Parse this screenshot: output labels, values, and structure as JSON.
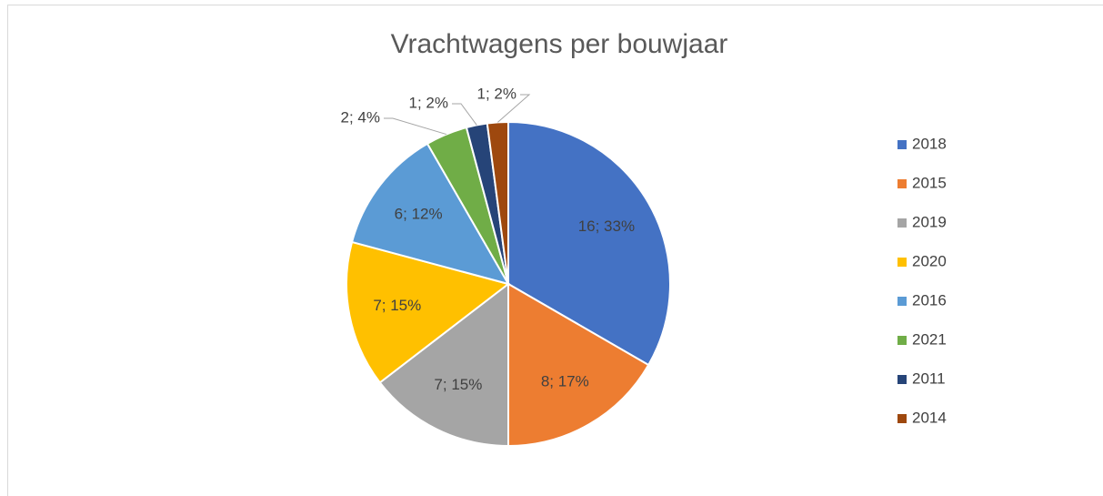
{
  "chart_data": {
    "type": "pie",
    "title": "Vrachtwagens per bouwjaar",
    "categories": [
      "2018",
      "2015",
      "2019",
      "2020",
      "2016",
      "2021",
      "2011",
      "2014"
    ],
    "values": [
      16,
      8,
      7,
      7,
      6,
      2,
      1,
      1
    ],
    "value_labels": [
      "16; 33%",
      "8; 17%",
      "7; 15%",
      "7; 15%",
      "6; 12%",
      "2; 4%",
      "1; 2%",
      "1; 2%"
    ],
    "colors": [
      "#4472c4",
      "#ed7d31",
      "#a5a5a5",
      "#ffc000",
      "#5b9bd5",
      "#70ad47",
      "#264478",
      "#9e480e"
    ],
    "legend": "right"
  }
}
